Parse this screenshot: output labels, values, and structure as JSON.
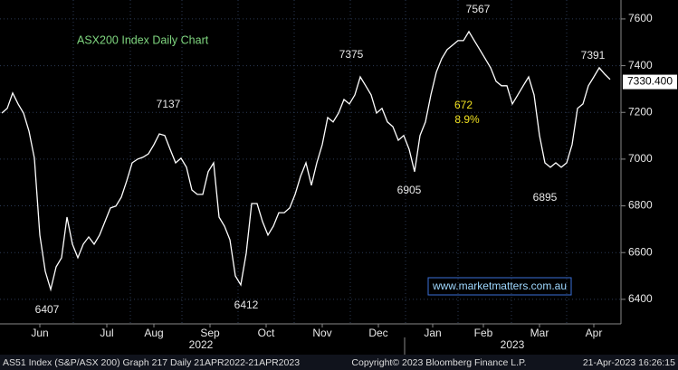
{
  "chart_data": {
    "type": "line",
    "title": "ASX200 Index Daily Chart",
    "x": [
      1,
      4,
      7,
      10,
      13,
      16,
      19,
      22,
      25,
      28,
      31,
      34,
      37,
      40,
      43,
      46,
      49,
      52,
      55,
      58,
      61,
      64,
      67,
      70,
      73,
      76,
      79,
      82,
      85,
      88,
      91,
      94,
      97,
      100,
      103,
      106,
      109,
      112,
      115,
      118,
      121,
      124,
      127,
      130,
      133,
      136,
      139,
      142,
      145,
      148,
      151,
      154,
      157,
      160,
      163,
      166,
      169,
      172,
      175,
      178,
      181,
      184,
      187,
      190,
      193,
      196,
      199,
      202,
      205,
      208,
      211,
      214,
      217,
      220,
      223,
      226,
      229,
      232,
      235,
      238,
      241,
      244,
      247,
      250,
      253,
      256,
      259,
      262,
      265,
      268,
      271,
      274,
      277,
      280,
      283,
      286,
      289,
      292,
      295,
      298,
      301,
      304,
      307,
      310,
      313,
      316,
      319,
      322,
      325,
      328,
      331,
      334,
      337
    ],
    "series": [
      {
        "name": "AS51 Index",
        "color": "#ffffff",
        "values": [
          7197,
          7217,
          7283,
          7236,
          7197,
          7120,
          7004,
          6675,
          6520,
          6442,
          6539,
          6578,
          6752,
          6636,
          6578,
          6636,
          6667,
          6636,
          6675,
          6733,
          6791,
          6799,
          6837,
          6907,
          6984,
          7000,
          7008,
          7023,
          7062,
          7108,
          7101,
          7042,
          6984,
          7004,
          6965,
          6868,
          6849,
          6849,
          6946,
          6984,
          6752,
          6713,
          6655,
          6500,
          6462,
          6597,
          6810,
          6810,
          6733,
          6675,
          6713,
          6771,
          6771,
          6791,
          6849,
          6926,
          6984,
          6888,
          6984,
          7062,
          7178,
          7159,
          7197,
          7255,
          7236,
          7275,
          7352,
          7314,
          7275,
          7197,
          7217,
          7159,
          7139,
          7081,
          7101,
          7042,
          6946,
          7101,
          7159,
          7275,
          7372,
          7430,
          7469,
          7488,
          7507,
          7507,
          7546,
          7507,
          7469,
          7430,
          7391,
          7333,
          7314,
          7314,
          7236,
          7275,
          7314,
          7352,
          7275,
          7101,
          6984,
          6965,
          6984,
          6965,
          6984,
          7062,
          7217,
          7236,
          7314,
          7352,
          7391,
          7364,
          7341
        ]
      }
    ],
    "xlim": [
      0,
      343
    ],
    "xticks": [
      {
        "value": 22,
        "label": "Jun"
      },
      {
        "value": 59,
        "label": "Jul"
      },
      {
        "value": 85,
        "label": "Aug"
      },
      {
        "value": 116,
        "label": "Sep"
      },
      {
        "value": 147,
        "label": "Oct"
      },
      {
        "value": 178,
        "label": "Nov"
      },
      {
        "value": 209,
        "label": "Dec"
      },
      {
        "value": 239,
        "label": "Jan"
      },
      {
        "value": 267,
        "label": "Feb"
      },
      {
        "value": 298,
        "label": "Mar"
      },
      {
        "value": 328,
        "label": "Apr"
      }
    ],
    "year_labels": [
      "2022",
      "2023"
    ],
    "ylim": [
      6295,
      7681
    ],
    "yticks": [
      6400,
      6600,
      6800,
      7000,
      7200,
      7400,
      7600
    ],
    "grid": true,
    "last_price": {
      "value": 7330.4,
      "label": "7330.400"
    },
    "annotations": [
      7567,
      7391,
      7375,
      7137,
      6905,
      6895,
      6407,
      6412
    ],
    "move": {
      "points": 672,
      "percent": "8.9%"
    },
    "website": "www.marketmatters.com.au",
    "footer": {
      "left": "AS51 Index (S&P/ASX 200) Graph 217  Daily 21APR2022-21APR2023",
      "center": "Copyright© 2023 Bloomberg Finance L.P.",
      "right": "21-Apr-2023 16:26:15"
    }
  }
}
